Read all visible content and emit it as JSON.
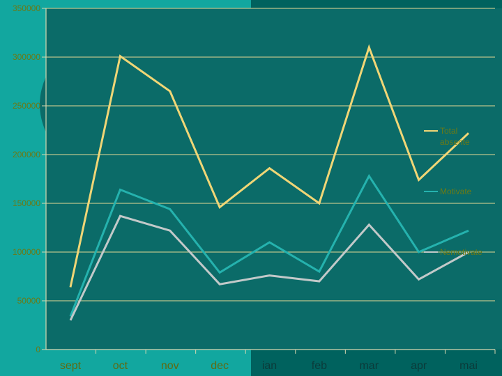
{
  "colors": {
    "background_left": "#12a79f",
    "background_right": "#00625e",
    "plot_area": "#0b6b68",
    "gridline": "#b9c38a",
    "axis": "#d7d7b0",
    "total": "#f0d676",
    "motivate": "#25b2ae",
    "nemotivate": "#c2c9c9"
  },
  "chart_data": {
    "type": "line",
    "categories": [
      "sept",
      "oct",
      "nov",
      "dec",
      "ian",
      "feb",
      "mar",
      "apr",
      "mai"
    ],
    "ylim": [
      0,
      350000
    ],
    "yticks": [
      "0",
      "50000",
      "100000",
      "150000",
      "200000",
      "250000",
      "300000",
      "350000"
    ],
    "grid": true,
    "legend_position": "right",
    "series": [
      {
        "name": "Total absente",
        "color": "#f0d676",
        "values": [
          64000,
          301000,
          265000,
          146000,
          186000,
          150000,
          310000,
          174000,
          222000
        ]
      },
      {
        "name": "Motivate",
        "color": "#25b2ae",
        "values": [
          34000,
          164000,
          144000,
          79000,
          110000,
          80000,
          178000,
          100000,
          122000
        ]
      },
      {
        "name": "Nemotivate",
        "color": "#c2c9c9",
        "values": [
          30000,
          137000,
          122000,
          67000,
          76000,
          70000,
          128000,
          72000,
          100000
        ]
      }
    ]
  }
}
